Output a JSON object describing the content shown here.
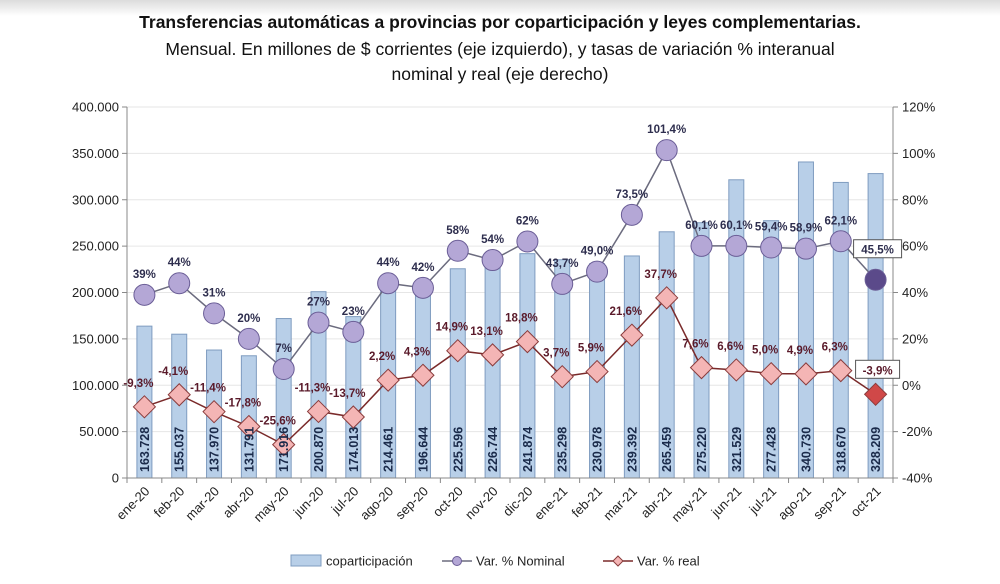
{
  "chart_data": {
    "type": "bar",
    "title": "Transferencias automáticas a provincias por coparticipación y leyes complementarias.",
    "subtitle_line1": "Mensual. En millones de $ corrientes (eje izquierdo), y tasas de variación % interanual",
    "subtitle_line2": "nominal y real (eje derecho)",
    "categories": [
      "ene-20",
      "feb-20",
      "mar-20",
      "abr-20",
      "may-20",
      "jun-20",
      "jul-20",
      "ago-20",
      "sep-20",
      "oct-20",
      "nov-20",
      "dic-20",
      "ene-21",
      "feb-21",
      "mar-21",
      "abr-21",
      "may-21",
      "jun-21",
      "jul-21",
      "ago-21",
      "sep-21",
      "oct-21"
    ],
    "left_axis": {
      "ylim": [
        0,
        400000
      ],
      "ticks": [
        "0",
        "50.000",
        "100.000",
        "150.000",
        "200.000",
        "250.000",
        "300.000",
        "350.000",
        "400.000"
      ]
    },
    "right_axis": {
      "ylim": [
        -40,
        120
      ],
      "ticks": [
        "-40%",
        "-20%",
        "0%",
        "20%",
        "40%",
        "60%",
        "80%",
        "100%",
        "120%"
      ]
    },
    "grid": true,
    "legend_position": "bottom",
    "series": [
      {
        "name": "coparticipación",
        "type": "bar",
        "axis": "left",
        "color": "#b8cfe8",
        "values": [
          163728,
          155037,
          137970,
          131791,
          171916,
          200870,
          174013,
          214461,
          196644,
          225596,
          226744,
          241874,
          235298,
          230978,
          239392,
          265459,
          275220,
          321529,
          277428,
          340730,
          318670,
          328209
        ],
        "labels": [
          "163.728",
          "155.037",
          "137.970",
          "131.791",
          "171.916",
          "200.870",
          "174.013",
          "214.461",
          "196.644",
          "225.596",
          "226.744",
          "241.874",
          "235.298",
          "230.978",
          "239.392",
          "265.459",
          "275.220",
          "321.529",
          "277.428",
          "340.730",
          "318.670",
          "328.209"
        ]
      },
      {
        "name": "Var. % Nominal",
        "type": "line",
        "axis": "right",
        "color": "#b4a7d6",
        "last_color": "#5b4a8a",
        "values": [
          39,
          44,
          31,
          20,
          7,
          27,
          23,
          44,
          42,
          58,
          54,
          62,
          43.7,
          49.0,
          73.5,
          101.4,
          60.1,
          60.1,
          59.4,
          58.9,
          62.1,
          45.5
        ],
        "labels": [
          "39%",
          "44%",
          "31%",
          "20%",
          "7%",
          "27%",
          "23%",
          "44%",
          "42%",
          "58%",
          "54%",
          "62%",
          "43,7%",
          "49,0%",
          "73,5%",
          "101,4%",
          "60,1%",
          "60,1%",
          "59,4%",
          "58,9%",
          "62,1%",
          "45,5%"
        ]
      },
      {
        "name": "Var. % real",
        "type": "line",
        "axis": "right",
        "color": "#f4b5b5",
        "last_color": "#d04848",
        "values": [
          -9.3,
          -4.1,
          -11.4,
          -17.8,
          -25.6,
          -11.3,
          -13.7,
          2.2,
          4.3,
          14.9,
          13.1,
          18.8,
          3.7,
          5.9,
          21.6,
          37.7,
          7.6,
          6.6,
          5.0,
          4.9,
          6.3,
          -3.9
        ],
        "labels": [
          "-9,3%",
          "-4,1%",
          "-11,4%",
          "-17,8%",
          "-25,6%",
          "-11,3%",
          "-13,7%",
          "2,2%",
          "4,3%",
          "14,9%",
          "13,1%",
          "18,8%",
          "3,7%",
          "5,9%",
          "21,6%",
          "37,7%",
          "7,6%",
          "6,6%",
          "5,0%",
          "4,9%",
          "6,3%",
          "-3,9%"
        ]
      }
    ]
  }
}
